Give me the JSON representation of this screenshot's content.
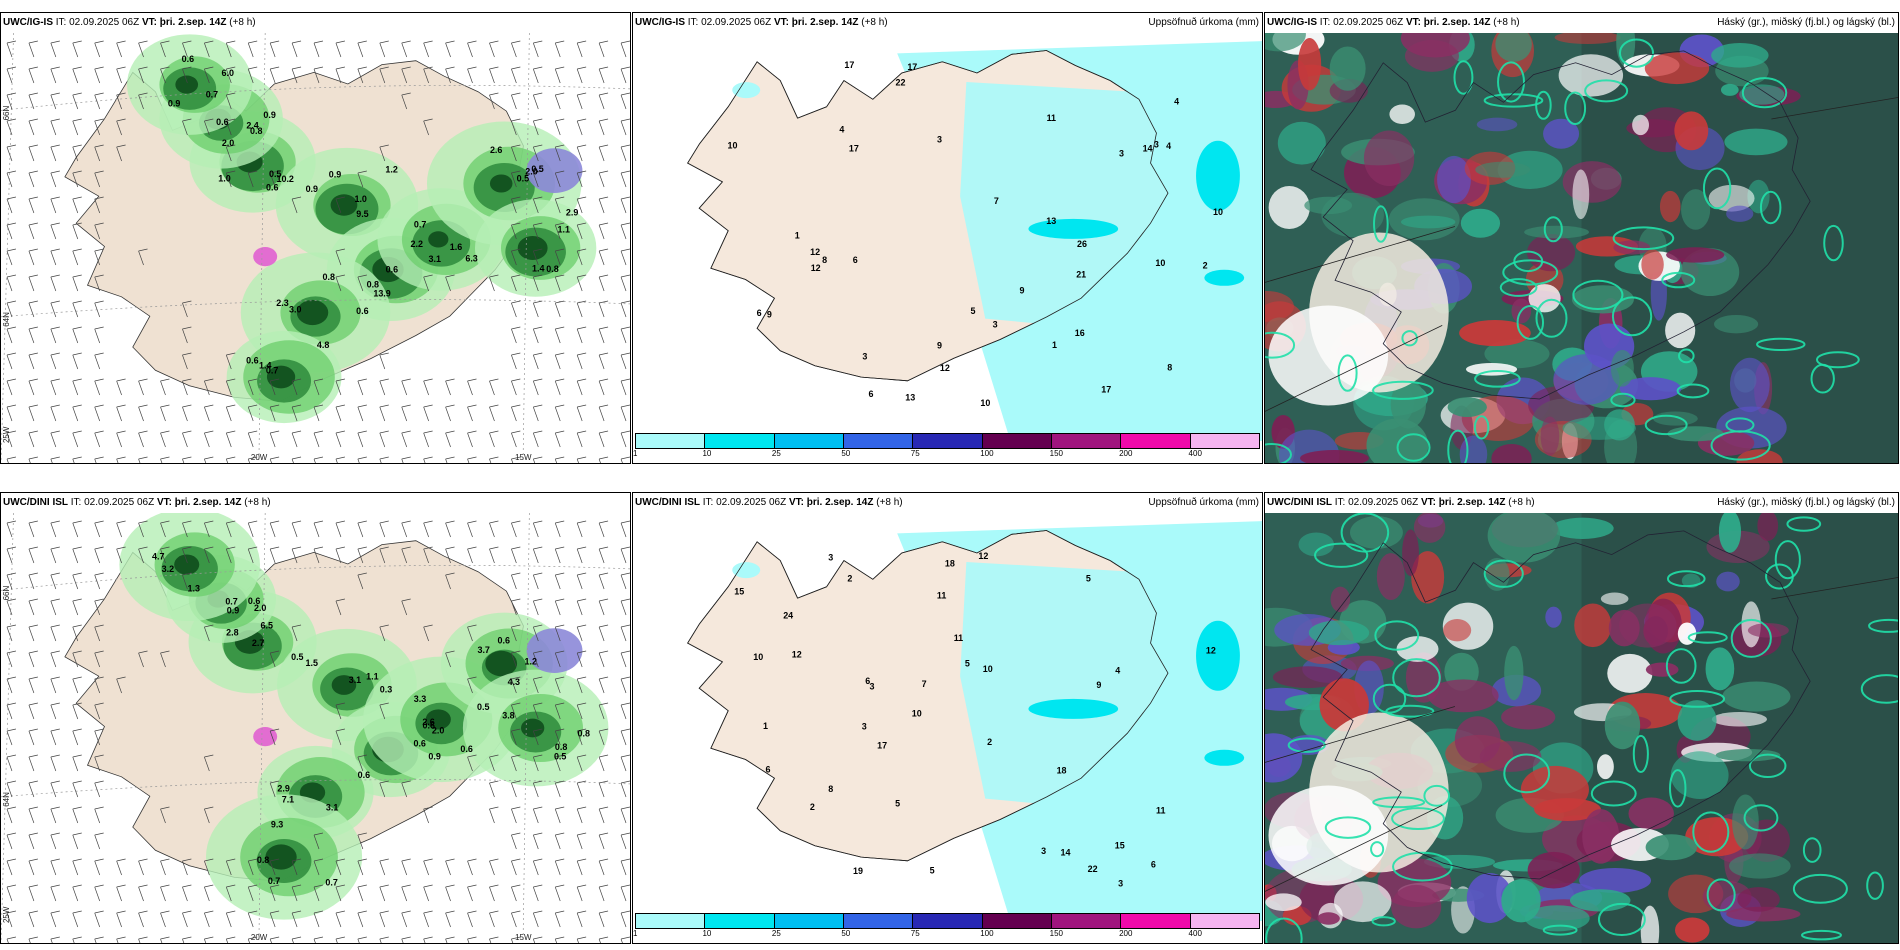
{
  "rows": [
    {
      "panels": [
        {
          "model": "UWC/IG-IS",
          "it_label": "IT:",
          "it_value": "02.09.2025 06Z",
          "vt_label": "VT:",
          "vt_value": "þri. 2.sep. 14Z",
          "lead": "(+8 h)",
          "right_title": ""
        },
        {
          "model": "UWC/IG-IS",
          "it_label": "IT:",
          "it_value": "02.09.2025 06Z",
          "vt_label": "VT:",
          "vt_value": "þri. 2.sep. 14Z",
          "lead": "(+8 h)",
          "right_title": "Uppsöfnuð úrkoma (mm)"
        },
        {
          "model": "UWC/IG-IS",
          "it_label": "IT:",
          "it_value": "02.09.2025 06Z",
          "vt_label": "VT:",
          "vt_value": "þri. 2.sep. 14Z",
          "lead": "(+8 h)",
          "right_title": "Háský (gr.), miðský (fj.bl.) og lágský (bl.)"
        }
      ],
      "values": [
        "0.6",
        "0.9",
        "0.8",
        "0.7",
        "0.5",
        "0.8",
        "0.6",
        "0.7",
        "0.6",
        "0.9",
        "1.0",
        "0.9",
        "0.6",
        "1.6",
        "2.0",
        "2.9",
        "2.3",
        "4.8",
        "2.4",
        "6.0",
        "10.2",
        "9.5",
        "13.9",
        "6.3",
        "0.5",
        "1.1",
        "3.0",
        "1.4",
        "2.0",
        "0.6",
        "0.5",
        "1.2",
        "2.2",
        "3.1",
        "2.6",
        "1.4",
        "0.8",
        "0.6",
        "0.9",
        "0.7",
        "0.8",
        "1.0"
      ],
      "acc_values": [
        "2",
        "1",
        "3",
        "3",
        "4",
        "6",
        "7",
        "8",
        "10",
        "13",
        "10",
        "17",
        "9",
        "10",
        "17",
        "12",
        "14",
        "16",
        "17",
        "6",
        "9",
        "11",
        "12",
        "13",
        "21",
        "26",
        "22",
        "17",
        "9",
        "3",
        "1",
        "4",
        "3",
        "12",
        "5",
        "4",
        "8",
        "10",
        "6",
        "3"
      ]
    },
    {
      "panels": [
        {
          "model": "UWC/DINI ISL",
          "it_label": "IT:",
          "it_value": "02.09.2025 06Z",
          "vt_label": "VT:",
          "vt_value": "þri. 2.sep. 14Z",
          "lead": "(+8 h)",
          "right_title": ""
        },
        {
          "model": "UWC/DINI ISL",
          "it_label": "IT:",
          "it_value": "02.09.2025 06Z",
          "vt_label": "VT:",
          "vt_value": "þri. 2.sep. 14Z",
          "lead": "(+8 h)",
          "right_title": "Uppsöfnuð úrkoma (mm)"
        },
        {
          "model": "UWC/DINI ISL",
          "it_label": "IT:",
          "it_value": "02.09.2025 06Z",
          "vt_label": "VT:",
          "vt_value": "þri. 2.sep. 14Z",
          "lead": "(+8 h)",
          "right_title": "Háský (gr.), miðský (fj.bl.) og lágský (bl.)"
        }
      ],
      "values": [
        "0.5",
        "0.3",
        "0.6",
        "0.5",
        "0.6",
        "0.5",
        "0.6",
        "0.8",
        "0.7",
        "1.3",
        "2.0",
        "1.1",
        "0.6",
        "0.6",
        "4.3",
        "3.8",
        "7.1",
        "9.3",
        "6.5",
        "4.7",
        "2.7",
        "3.1",
        "0.9",
        "2.6",
        "3.7",
        "0.8",
        "2.9",
        "0.7",
        "0.9",
        "3.2",
        "2.8",
        "1.5",
        "2.0",
        "3.3",
        "1.2",
        "0.8",
        "3.1",
        "0.7",
        "0.6"
      ],
      "acc_values": [
        "2",
        "3",
        "2",
        "1",
        "2",
        "3",
        "5",
        "7",
        "8",
        "10",
        "11",
        "6",
        "5",
        "18",
        "12",
        "10",
        "11",
        "5",
        "15",
        "12",
        "24",
        "17",
        "15",
        "22",
        "19",
        "18",
        "14",
        "12",
        "9",
        "6",
        "3",
        "3",
        "11",
        "10",
        "5",
        "4",
        "6",
        "3"
      ]
    }
  ],
  "map_labels": {
    "lon_20w": "20W",
    "lon_15w": "15W",
    "lat_66n": "66N",
    "lat_64n": "64N",
    "lon_25w": "25W"
  },
  "colorbar": {
    "ticks": [
      "1",
      "10",
      "25",
      "50",
      "75",
      "100",
      "150",
      "200",
      "400"
    ],
    "colors": [
      "#aafafa",
      "#00e6f0",
      "#00bff2",
      "#3264e6",
      "#2828b4",
      "#640050",
      "#a0147e",
      "#f00aaa",
      "#f5b4f0"
    ]
  }
}
